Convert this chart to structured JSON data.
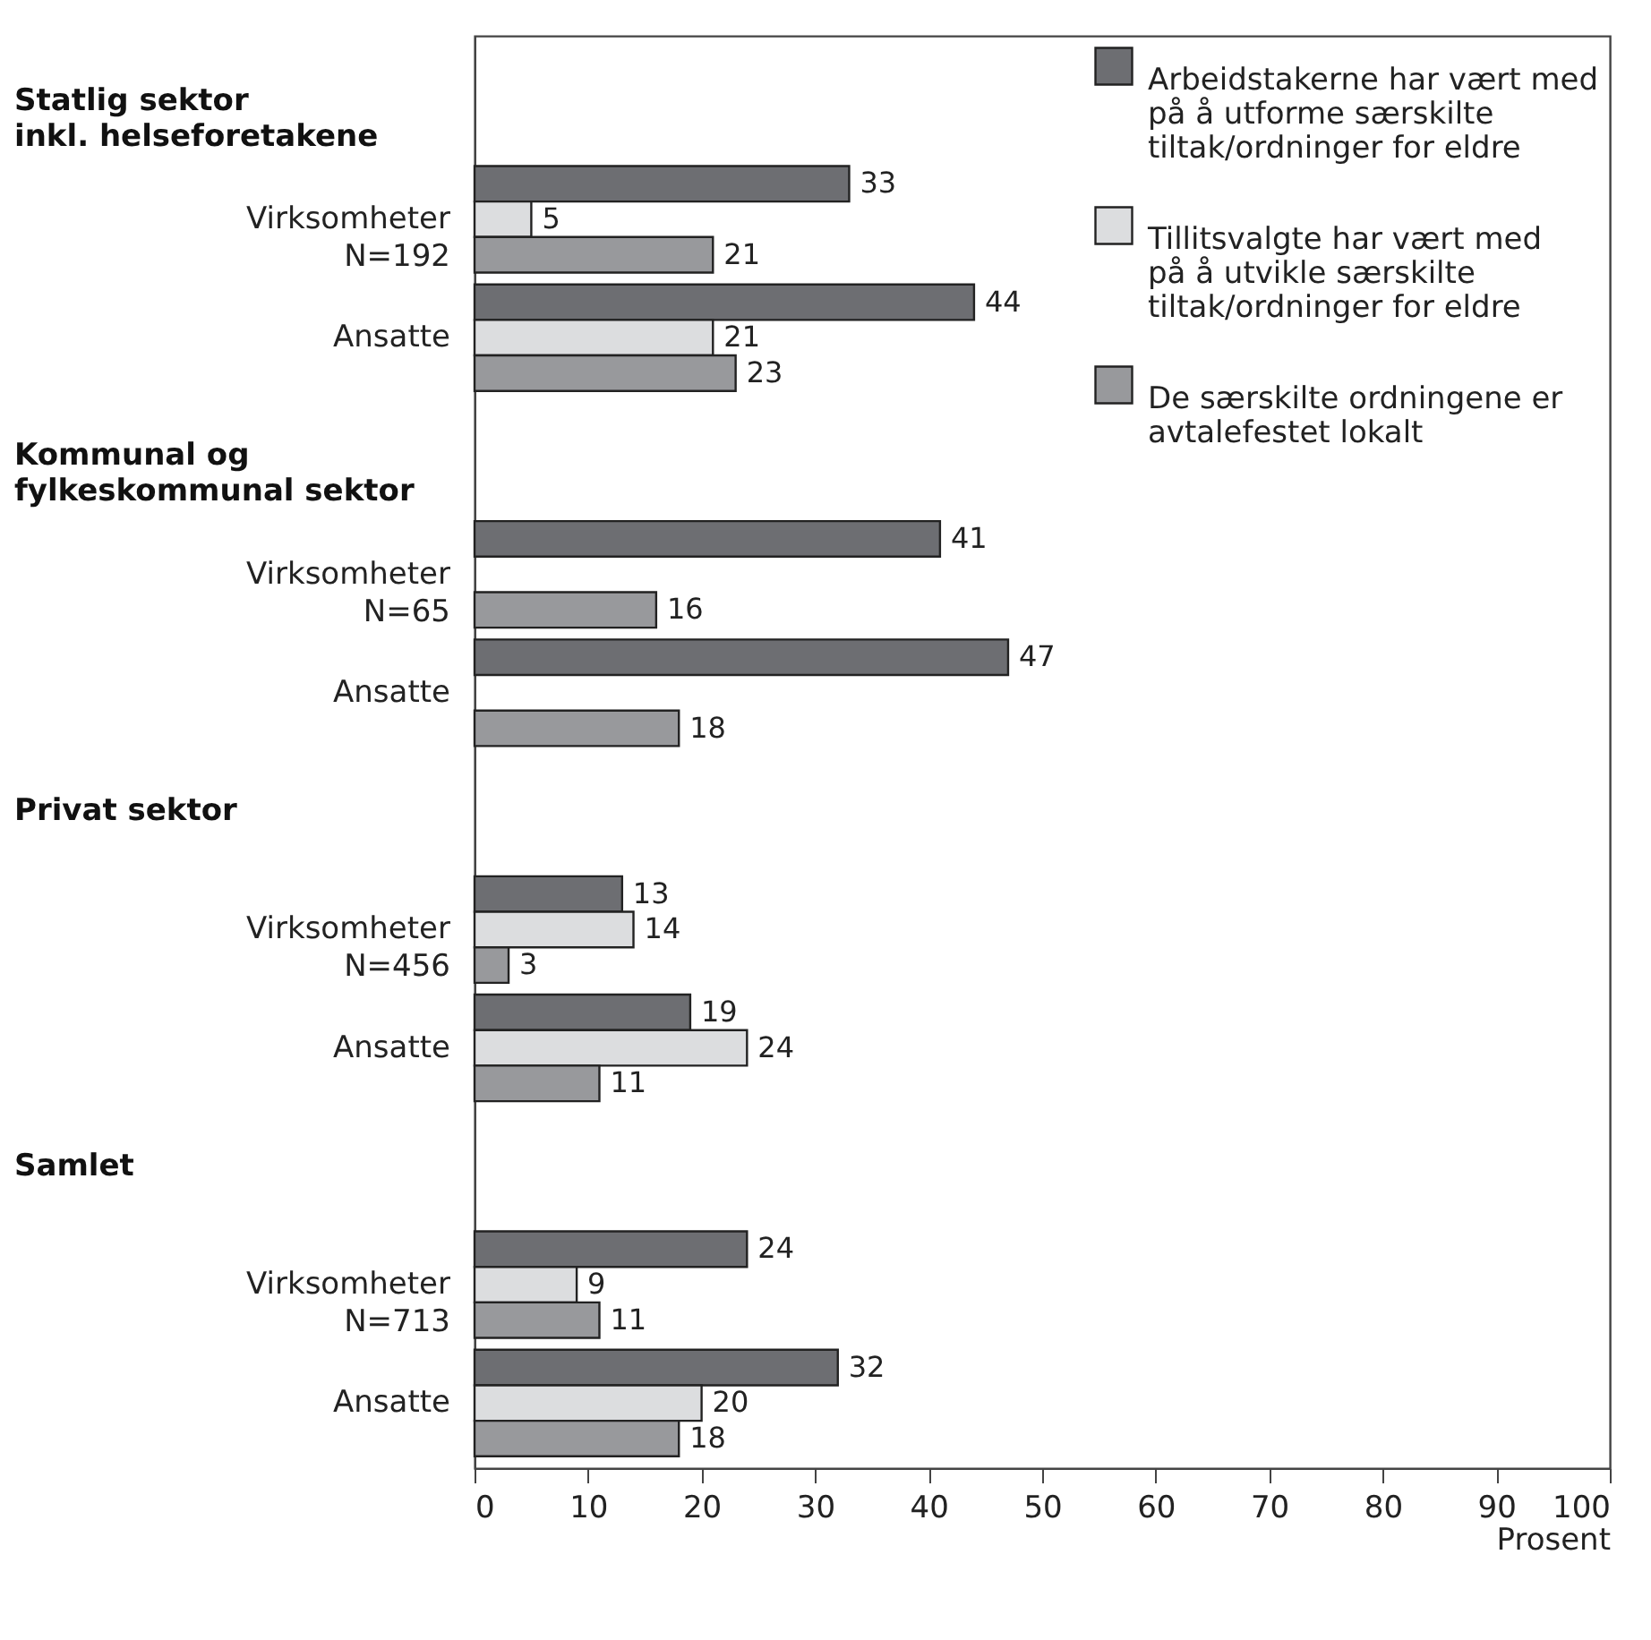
{
  "chart_data": {
    "type": "bar",
    "orientation": "horizontal",
    "xlabel": "Prosent",
    "categories": [
      "Virksomheter\nN=192",
      "Ansatte",
      "Virksomheter\nN=65",
      "Ansatte",
      "Virksomheter\nN=456",
      "Ansatte",
      "Virksomheter\nN=713",
      "Ansatte"
    ],
    "annotations": [
      "Statlig sektor\ninkl. helseforetakene",
      "Kommunal og\nfylkeskommunal sektor",
      "Privat sektor",
      "Samlet"
    ],
    "series": [
      {
        "name": "Arbeidstakerne har vært med på å utforme særskilte tiltak/ordninger for eldre",
        "color": "#6d6e72",
        "values": [
          33,
          44,
          41,
          47,
          13,
          19,
          24,
          32
        ]
      },
      {
        "name": "Tillitsvalgte har vært med på å utvikle særskilte tiltak/ordninger for eldre",
        "color": "#dcdddf",
        "values": [
          5,
          21,
          null,
          null,
          14,
          24,
          9,
          20
        ]
      },
      {
        "name": "De særskilte ordningene er avtalefestet lokalt",
        "color": "#98999c",
        "values": [
          21,
          23,
          16,
          18,
          3,
          11,
          11,
          18
        ]
      }
    ],
    "xlim": [
      0,
      100
    ],
    "xticks": [
      0,
      10,
      20,
      30,
      40,
      50,
      60,
      70,
      80,
      90,
      100
    ],
    "data_labels": true,
    "legend": "top right",
    "grid": false
  }
}
